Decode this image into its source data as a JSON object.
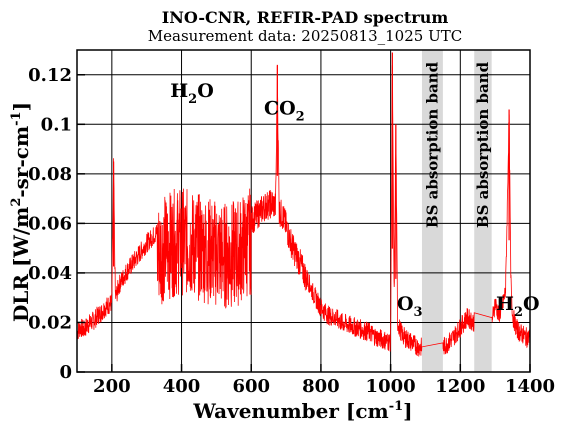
{
  "chart_data": {
    "type": "line",
    "title": "INO-CNR, REFIR-PAD spectrum",
    "subtitle": "Measurement data: 20250813_1025 UTC",
    "xlabel": {
      "main": "Wavenumber [cm",
      "sup": "-1",
      "end": "]"
    },
    "ylabel": {
      "main": "DLR [W/m",
      "sup1": "2",
      "mid": "-sr-cm",
      "sup2": "-1",
      "end": "]"
    },
    "xlim": [
      100,
      1400
    ],
    "ylim": [
      0,
      0.13
    ],
    "xticks": [
      200,
      400,
      600,
      800,
      1000,
      1200,
      1400
    ],
    "xtick_labels": [
      "200",
      "400",
      "600",
      "800",
      "1000",
      "1200",
      "1400"
    ],
    "yticks": [
      0,
      0.02,
      0.04,
      0.06,
      0.08,
      0.1,
      0.12
    ],
    "ytick_labels": [
      "0",
      "0.02",
      "0.04",
      "0.06",
      "0.08",
      "0.1",
      "0.12"
    ],
    "grid": true,
    "series_color": "#ff0000",
    "band_color": "#d9d9d9",
    "absorption_bands": [
      {
        "label": "BS absorption band",
        "x_start": 1090,
        "x_end": 1150
      },
      {
        "label": "BS absorption band",
        "x_start": 1240,
        "x_end": 1290
      }
    ],
    "annotations": [
      {
        "main": "H",
        "sub": "2",
        "rest": "O",
        "x": 430,
        "y": 0.111
      },
      {
        "main": "CO",
        "sub": "2",
        "rest": "",
        "x": 695,
        "y": 0.104
      },
      {
        "main": "O",
        "sub": "3",
        "rest": "",
        "x": 1055,
        "y": 0.025
      },
      {
        "main": "H",
        "sub": "2",
        "rest": "O",
        "x": 1365,
        "y": 0.025
      }
    ],
    "series": [
      {
        "x": [
          100,
          110,
          120,
          130,
          140,
          150,
          160,
          170,
          180,
          190,
          200,
          205,
          210,
          215,
          220,
          240,
          260,
          280,
          300,
          320,
          340,
          360,
          380,
          400,
          420,
          440,
          460,
          480,
          500,
          520,
          540,
          560,
          580,
          600,
          620,
          640,
          660,
          670,
          675,
          680,
          690,
          700,
          710,
          720,
          740,
          760,
          780,
          800,
          820,
          840,
          860,
          880,
          900,
          920,
          940,
          960,
          980,
          1000,
          1005,
          1010,
          1015,
          1020,
          1030,
          1040,
          1050,
          1060,
          1070,
          1080,
          1090,
          1150,
          1160,
          1180,
          1200,
          1210,
          1220,
          1230,
          1240,
          1290,
          1300,
          1310,
          1320,
          1330,
          1335,
          1340,
          1345,
          1350,
          1360,
          1370,
          1380,
          1390,
          1400
        ],
        "y": [
          0.018,
          0.02,
          0.019,
          0.021,
          0.022,
          0.023,
          0.025,
          0.026,
          0.028,
          0.029,
          0.03,
          0.085,
          0.032,
          0.034,
          0.037,
          0.042,
          0.046,
          0.05,
          0.054,
          0.057,
          0.06,
          0.062,
          0.063,
          0.064,
          0.063,
          0.062,
          0.061,
          0.06,
          0.059,
          0.058,
          0.058,
          0.059,
          0.062,
          0.064,
          0.067,
          0.07,
          0.071,
          0.07,
          0.124,
          0.068,
          0.066,
          0.062,
          0.057,
          0.053,
          0.047,
          0.04,
          0.033,
          0.028,
          0.025,
          0.024,
          0.022,
          0.021,
          0.02,
          0.019,
          0.018,
          0.016,
          0.015,
          0.014,
          0.129,
          0.03,
          0.1,
          0.022,
          0.018,
          0.016,
          0.015,
          0.014,
          0.013,
          0.012,
          0.012,
          0.012,
          0.013,
          0.016,
          0.02,
          0.022,
          0.024,
          0.023,
          0.022,
          0.022,
          0.03,
          0.025,
          0.028,
          0.035,
          0.07,
          0.106,
          0.04,
          0.025,
          0.02,
          0.018,
          0.017,
          0.016,
          0.016
        ]
      }
    ]
  }
}
